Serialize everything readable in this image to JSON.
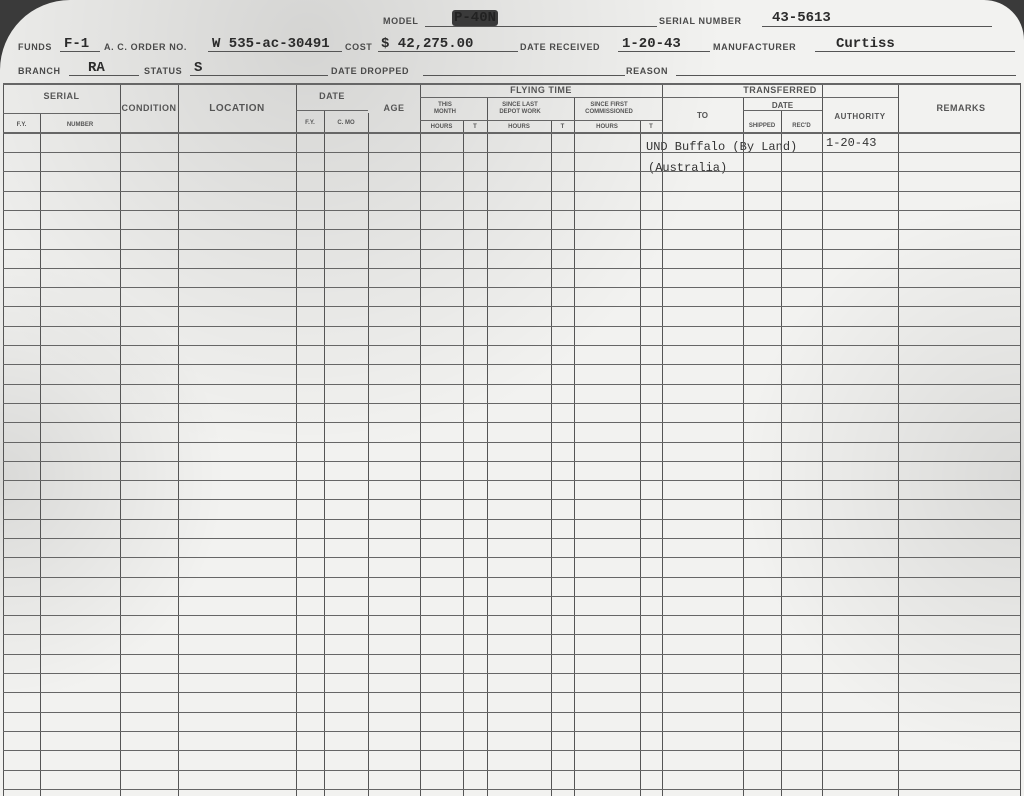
{
  "header": {
    "model_label": "MODEL",
    "model_value": "P-40N",
    "serial_number_label": "SERIAL NUMBER",
    "serial_number_value": "43-5613",
    "funds_label": "FUNDS",
    "funds_value": "F-1",
    "ac_order_label": "A. C. ORDER NO.",
    "ac_order_value": "W 535-ac-30491",
    "cost_label": "COST",
    "cost_value": "$ 42,275.00",
    "date_received_label": "DATE RECEIVED",
    "date_received_value": "1-20-43",
    "manufacturer_label": "MANUFACTURER",
    "manufacturer_value": "Curtiss",
    "branch_label": "BRANCH",
    "branch_value": "RA",
    "status_label": "STATUS",
    "status_value": "S",
    "date_dropped_label": "DATE DROPPED",
    "reason_label": "REASON"
  },
  "table": {
    "serial": "SERIAL",
    "fy": "F.Y.",
    "number": "NUMBER",
    "condition": "CONDITION",
    "location": "LOCATION",
    "date": "DATE",
    "date_fy": "F.Y.",
    "date_cmo": "C. MO",
    "age": "AGE",
    "flying_time": "FLYING TIME",
    "this_month": "THIS MONTH",
    "since_depot": "SINCE LAST DEPOT WORK",
    "since_commissioned": "SINCE FIRST COMMISSIONED",
    "hours": "HOURS",
    "t": "T",
    "transferred": "TRANSFERRED",
    "to": "TO",
    "transfer_date": "DATE",
    "shipped": "SHIPPED",
    "recd": "REC'D",
    "authority": "AUTHORITY",
    "remarks": "REMARKS"
  },
  "entries": [
    {
      "to": "UND Buffalo (By Land)",
      "authority": "1-20-43"
    },
    {
      "to": "(Australia)",
      "authority": ""
    }
  ]
}
